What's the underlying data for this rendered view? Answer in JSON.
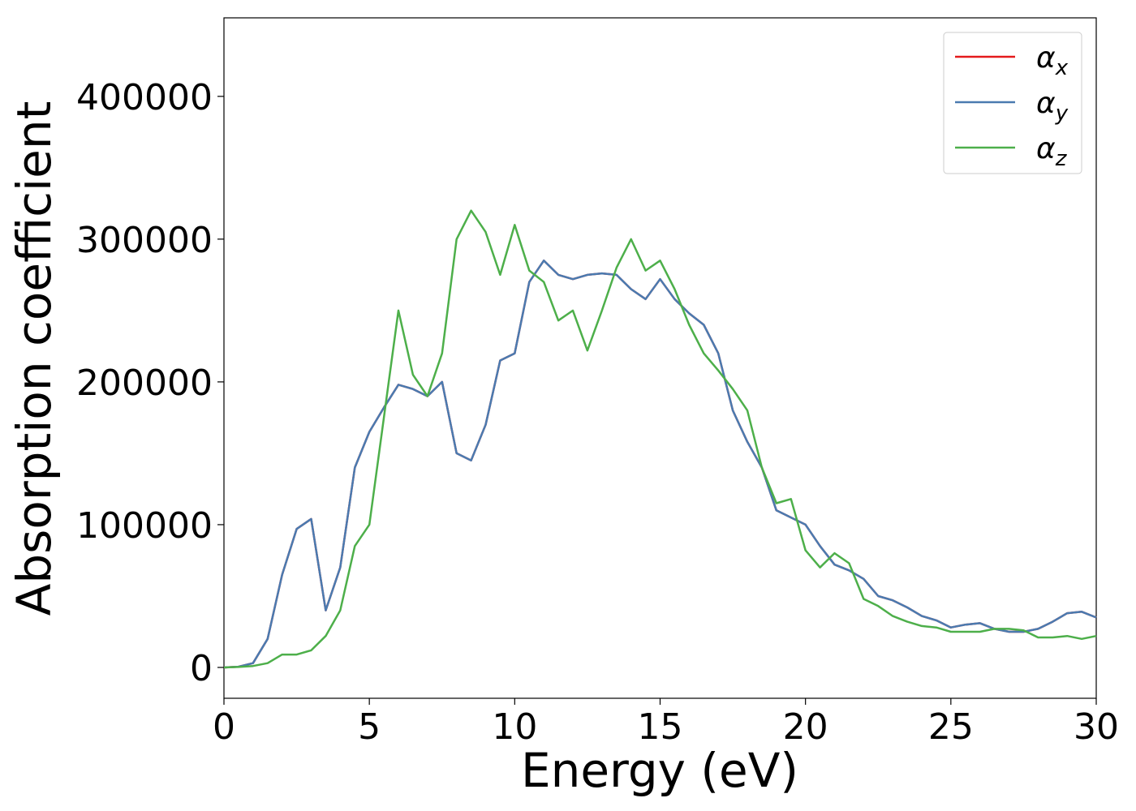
{
  "chart_data": {
    "type": "line",
    "xlabel": "Energy (eV)",
    "ylabel": "Absorption coefficient",
    "x": [
      0,
      0.5,
      1,
      1.5,
      2,
      2.5,
      3,
      3.5,
      4,
      4.5,
      5,
      5.5,
      6,
      6.5,
      7,
      7.5,
      8,
      8.5,
      9,
      9.5,
      10,
      10.5,
      11,
      11.5,
      12,
      12.5,
      13,
      13.5,
      14,
      14.5,
      15,
      15.5,
      16,
      16.5,
      17,
      17.5,
      18,
      18.5,
      19,
      19.5,
      20,
      20.5,
      21,
      21.5,
      22,
      22.5,
      23,
      23.5,
      24,
      24.5,
      25,
      25.5,
      26,
      26.5,
      27,
      27.5,
      28,
      28.5,
      29,
      29.5,
      30
    ],
    "series": [
      {
        "name": "α_x",
        "color": "#e41a1c",
        "values": [
          0,
          500,
          3000,
          20000,
          65000,
          97000,
          104000,
          40000,
          70000,
          140000,
          165000,
          182000,
          198000,
          195000,
          190000,
          200000,
          150000,
          145000,
          170000,
          215000,
          220000,
          270000,
          285000,
          275000,
          272000,
          275000,
          276000,
          275000,
          265000,
          258000,
          272000,
          258000,
          248000,
          240000,
          220000,
          180000,
          158000,
          140000,
          110000,
          105000,
          100000,
          85000,
          72000,
          68000,
          62000,
          50000,
          47000,
          42000,
          36000,
          33000,
          28000,
          30000,
          31000,
          27000,
          25000,
          25000,
          27000,
          32000,
          38000,
          39000,
          35000
        ]
      },
      {
        "name": "α_y",
        "color": "#4a7bb0",
        "values": [
          0,
          500,
          3000,
          20000,
          65000,
          97000,
          104000,
          40000,
          70000,
          140000,
          165000,
          182000,
          198000,
          195000,
          190000,
          200000,
          150000,
          145000,
          170000,
          215000,
          220000,
          270000,
          285000,
          275000,
          272000,
          275000,
          276000,
          275000,
          265000,
          258000,
          272000,
          258000,
          248000,
          240000,
          220000,
          180000,
          158000,
          140000,
          110000,
          105000,
          100000,
          85000,
          72000,
          68000,
          62000,
          50000,
          47000,
          42000,
          36000,
          33000,
          28000,
          30000,
          31000,
          27000,
          25000,
          25000,
          27000,
          32000,
          38000,
          39000,
          35000
        ]
      },
      {
        "name": "α_z",
        "color": "#4daf4a",
        "values": [
          0,
          300,
          1000,
          3000,
          9000,
          9000,
          12000,
          22000,
          40000,
          85000,
          100000,
          175000,
          250000,
          205000,
          190000,
          220000,
          300000,
          320000,
          305000,
          275000,
          310000,
          278000,
          270000,
          243000,
          250000,
          222000,
          250000,
          280000,
          300000,
          278000,
          285000,
          265000,
          240000,
          220000,
          208000,
          195000,
          180000,
          140000,
          115000,
          118000,
          82000,
          70000,
          80000,
          73000,
          48000,
          43000,
          36000,
          32000,
          29000,
          28000,
          25000,
          25000,
          25000,
          27000,
          27000,
          26000,
          21000,
          21000,
          22000,
          20000,
          22000
        ]
      }
    ],
    "xlim": [
      0,
      30
    ],
    "xticks": [
      0,
      5,
      10,
      15,
      20,
      25,
      30
    ],
    "ylim": [
      -21600,
      455000
    ],
    "yticks": [
      0,
      100000,
      200000,
      300000,
      400000
    ],
    "legend": "upper right",
    "grid": false
  }
}
